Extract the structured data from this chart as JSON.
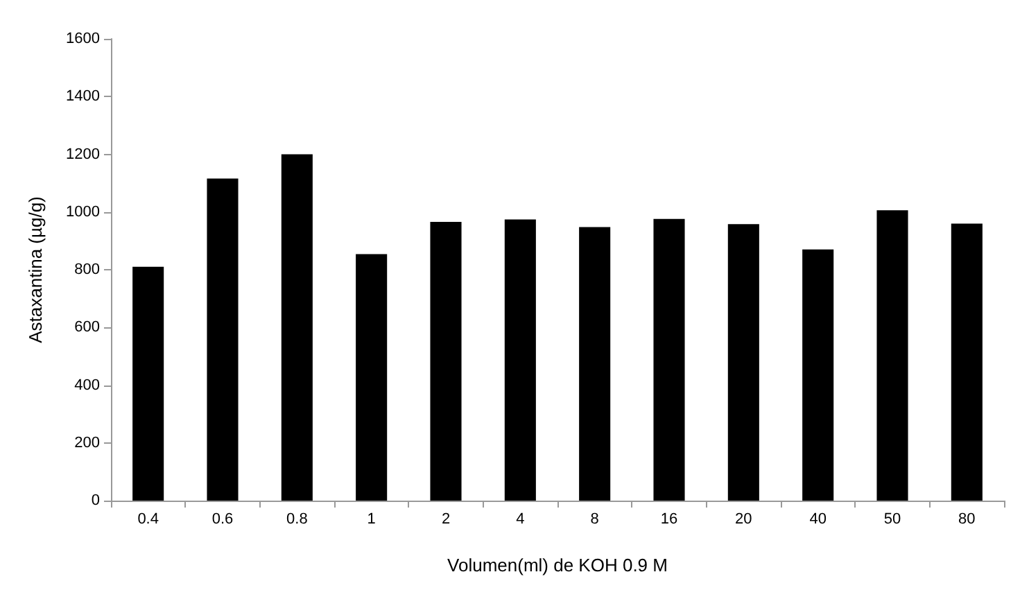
{
  "chart_data": {
    "type": "bar",
    "xlabel": "Volumen(ml) de KOH 0.9 M",
    "ylabel": "Astaxantina (µg/g)",
    "categories": [
      "0.4",
      "0.6",
      "0.8",
      "1",
      "2",
      "4",
      "8",
      "16",
      "20",
      "40",
      "50",
      "80"
    ],
    "values": [
      810,
      1116,
      1200,
      854,
      966,
      974,
      948,
      976,
      958,
      870,
      1006,
      960
    ],
    "color": "#000000",
    "ylim": [
      0,
      1600
    ],
    "yticks": [
      0,
      200,
      400,
      600,
      800,
      1000,
      1200,
      1400,
      1600
    ],
    "grid": false
  }
}
